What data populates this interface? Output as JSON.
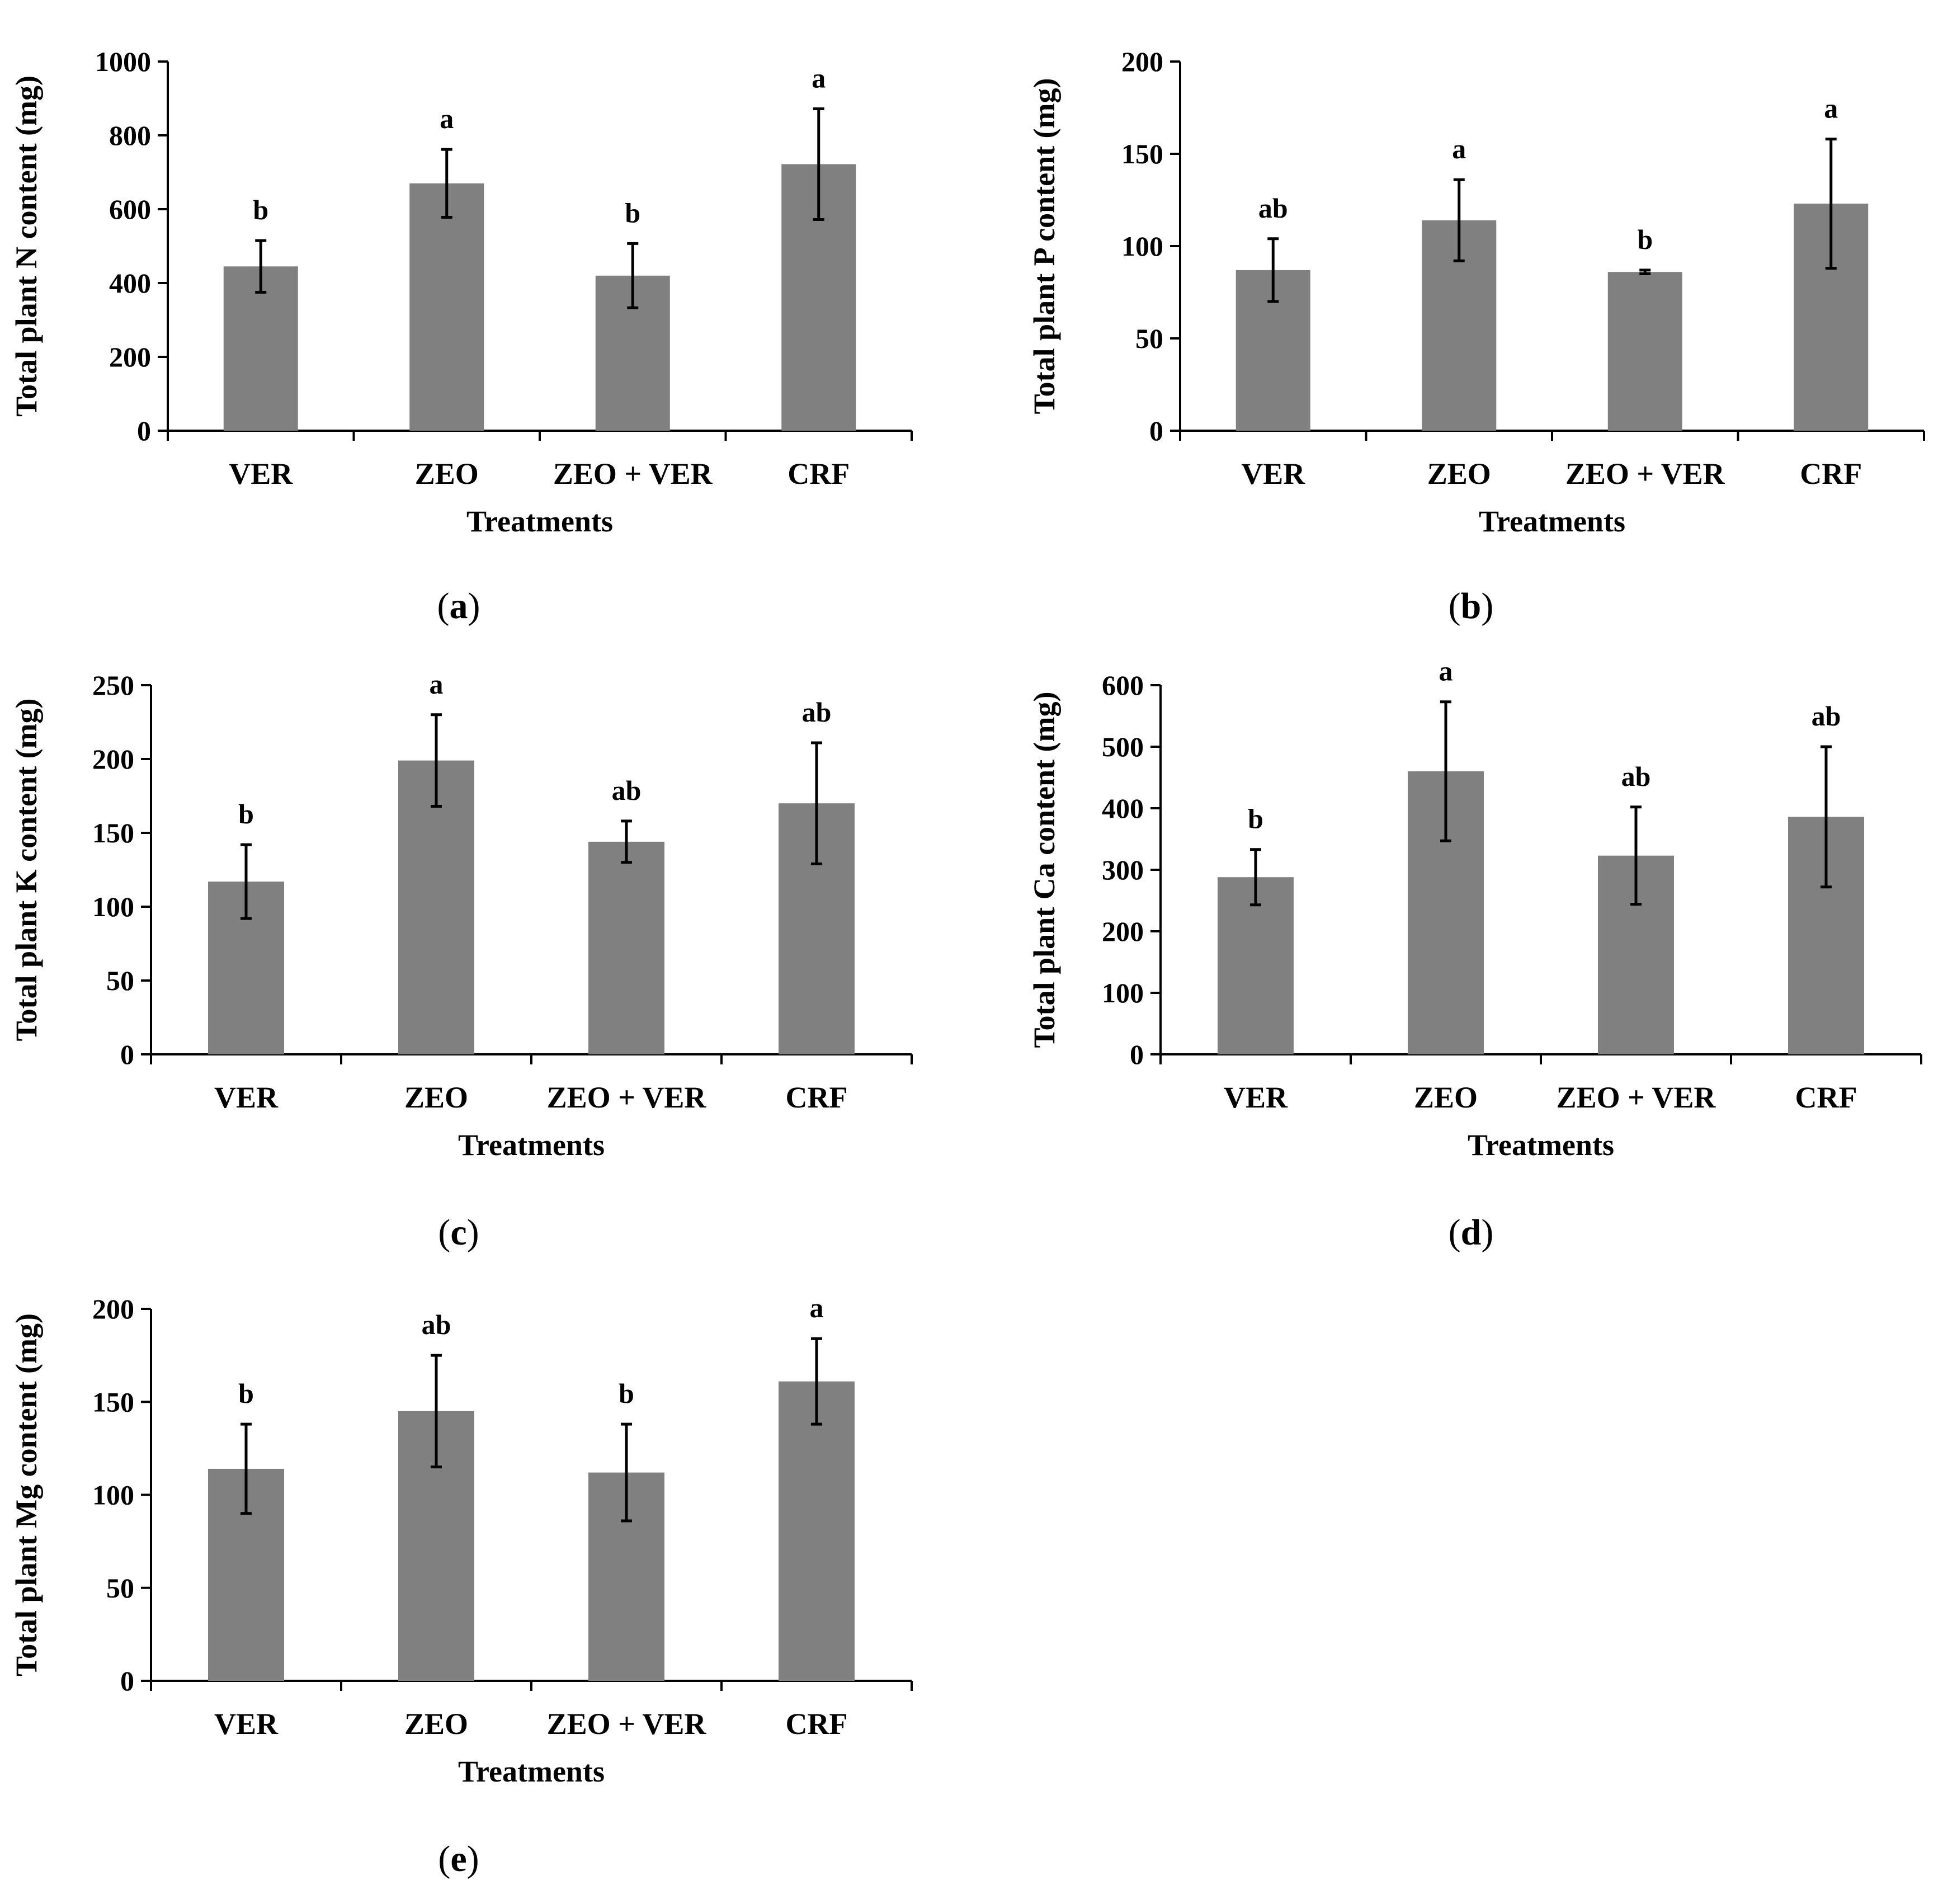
{
  "chart_data": [
    {
      "type": "bar",
      "panel": "a",
      "categories": [
        "VER",
        "ZEO",
        "ZEO + VER",
        "CRF"
      ],
      "values": [
        445,
        670,
        420,
        722
      ],
      "errors": [
        70,
        92,
        87,
        150
      ],
      "significance": [
        "b",
        "a",
        "b",
        "a"
      ],
      "xlabel": "Treatments",
      "ylabel": "Total plant N content (mg)",
      "ylim": [
        0,
        1000
      ],
      "yticks": [
        0,
        200,
        400,
        600,
        800,
        1000
      ]
    },
    {
      "type": "bar",
      "panel": "b",
      "categories": [
        "VER",
        "ZEO",
        "ZEO + VER",
        "CRF"
      ],
      "values": [
        87,
        114,
        86,
        123
      ],
      "errors": [
        17,
        22,
        1,
        35
      ],
      "significance": [
        "ab",
        "a",
        "b",
        "a"
      ],
      "xlabel": "Treatments",
      "ylabel": "Total plant P content (mg)",
      "ylim": [
        0,
        200
      ],
      "yticks": [
        0,
        50,
        100,
        150,
        200
      ]
    },
    {
      "type": "bar",
      "panel": "c",
      "categories": [
        "VER",
        "ZEO",
        "ZEO + VER",
        "CRF"
      ],
      "values": [
        117,
        199,
        144,
        170
      ],
      "errors": [
        25,
        31,
        14,
        41
      ],
      "significance": [
        "b",
        "a",
        "ab",
        "ab"
      ],
      "xlabel": "Treatments",
      "ylabel": "Total plant K content (mg)",
      "ylim": [
        0,
        250
      ],
      "yticks": [
        0,
        50,
        100,
        150,
        200,
        250
      ]
    },
    {
      "type": "bar",
      "panel": "d",
      "categories": [
        "VER",
        "ZEO",
        "ZEO + VER",
        "CRF"
      ],
      "values": [
        288,
        460,
        323,
        386
      ],
      "errors": [
        45,
        113,
        79,
        114
      ],
      "significance": [
        "b",
        "a",
        "ab",
        "ab"
      ],
      "xlabel": "Treatments",
      "ylabel": "Total plant Ca content (mg)",
      "ylim": [
        0,
        600
      ],
      "yticks": [
        0,
        100,
        200,
        300,
        400,
        500,
        600
      ]
    },
    {
      "type": "bar",
      "panel": "e",
      "categories": [
        "VER",
        "ZEO",
        "ZEO + VER",
        "CRF"
      ],
      "values": [
        114,
        145,
        112,
        161
      ],
      "errors": [
        24,
        30,
        26,
        23
      ],
      "significance": [
        "b",
        "ab",
        "b",
        "a"
      ],
      "xlabel": "Treatments",
      "ylabel": "Total plant Mg content (mg)",
      "ylim": [
        0,
        200
      ],
      "yticks": [
        0,
        50,
        100,
        150,
        200
      ]
    }
  ],
  "colors": {
    "bar": "#808080",
    "axis": "#000000",
    "error": "#000000",
    "background": "#ffffff"
  }
}
